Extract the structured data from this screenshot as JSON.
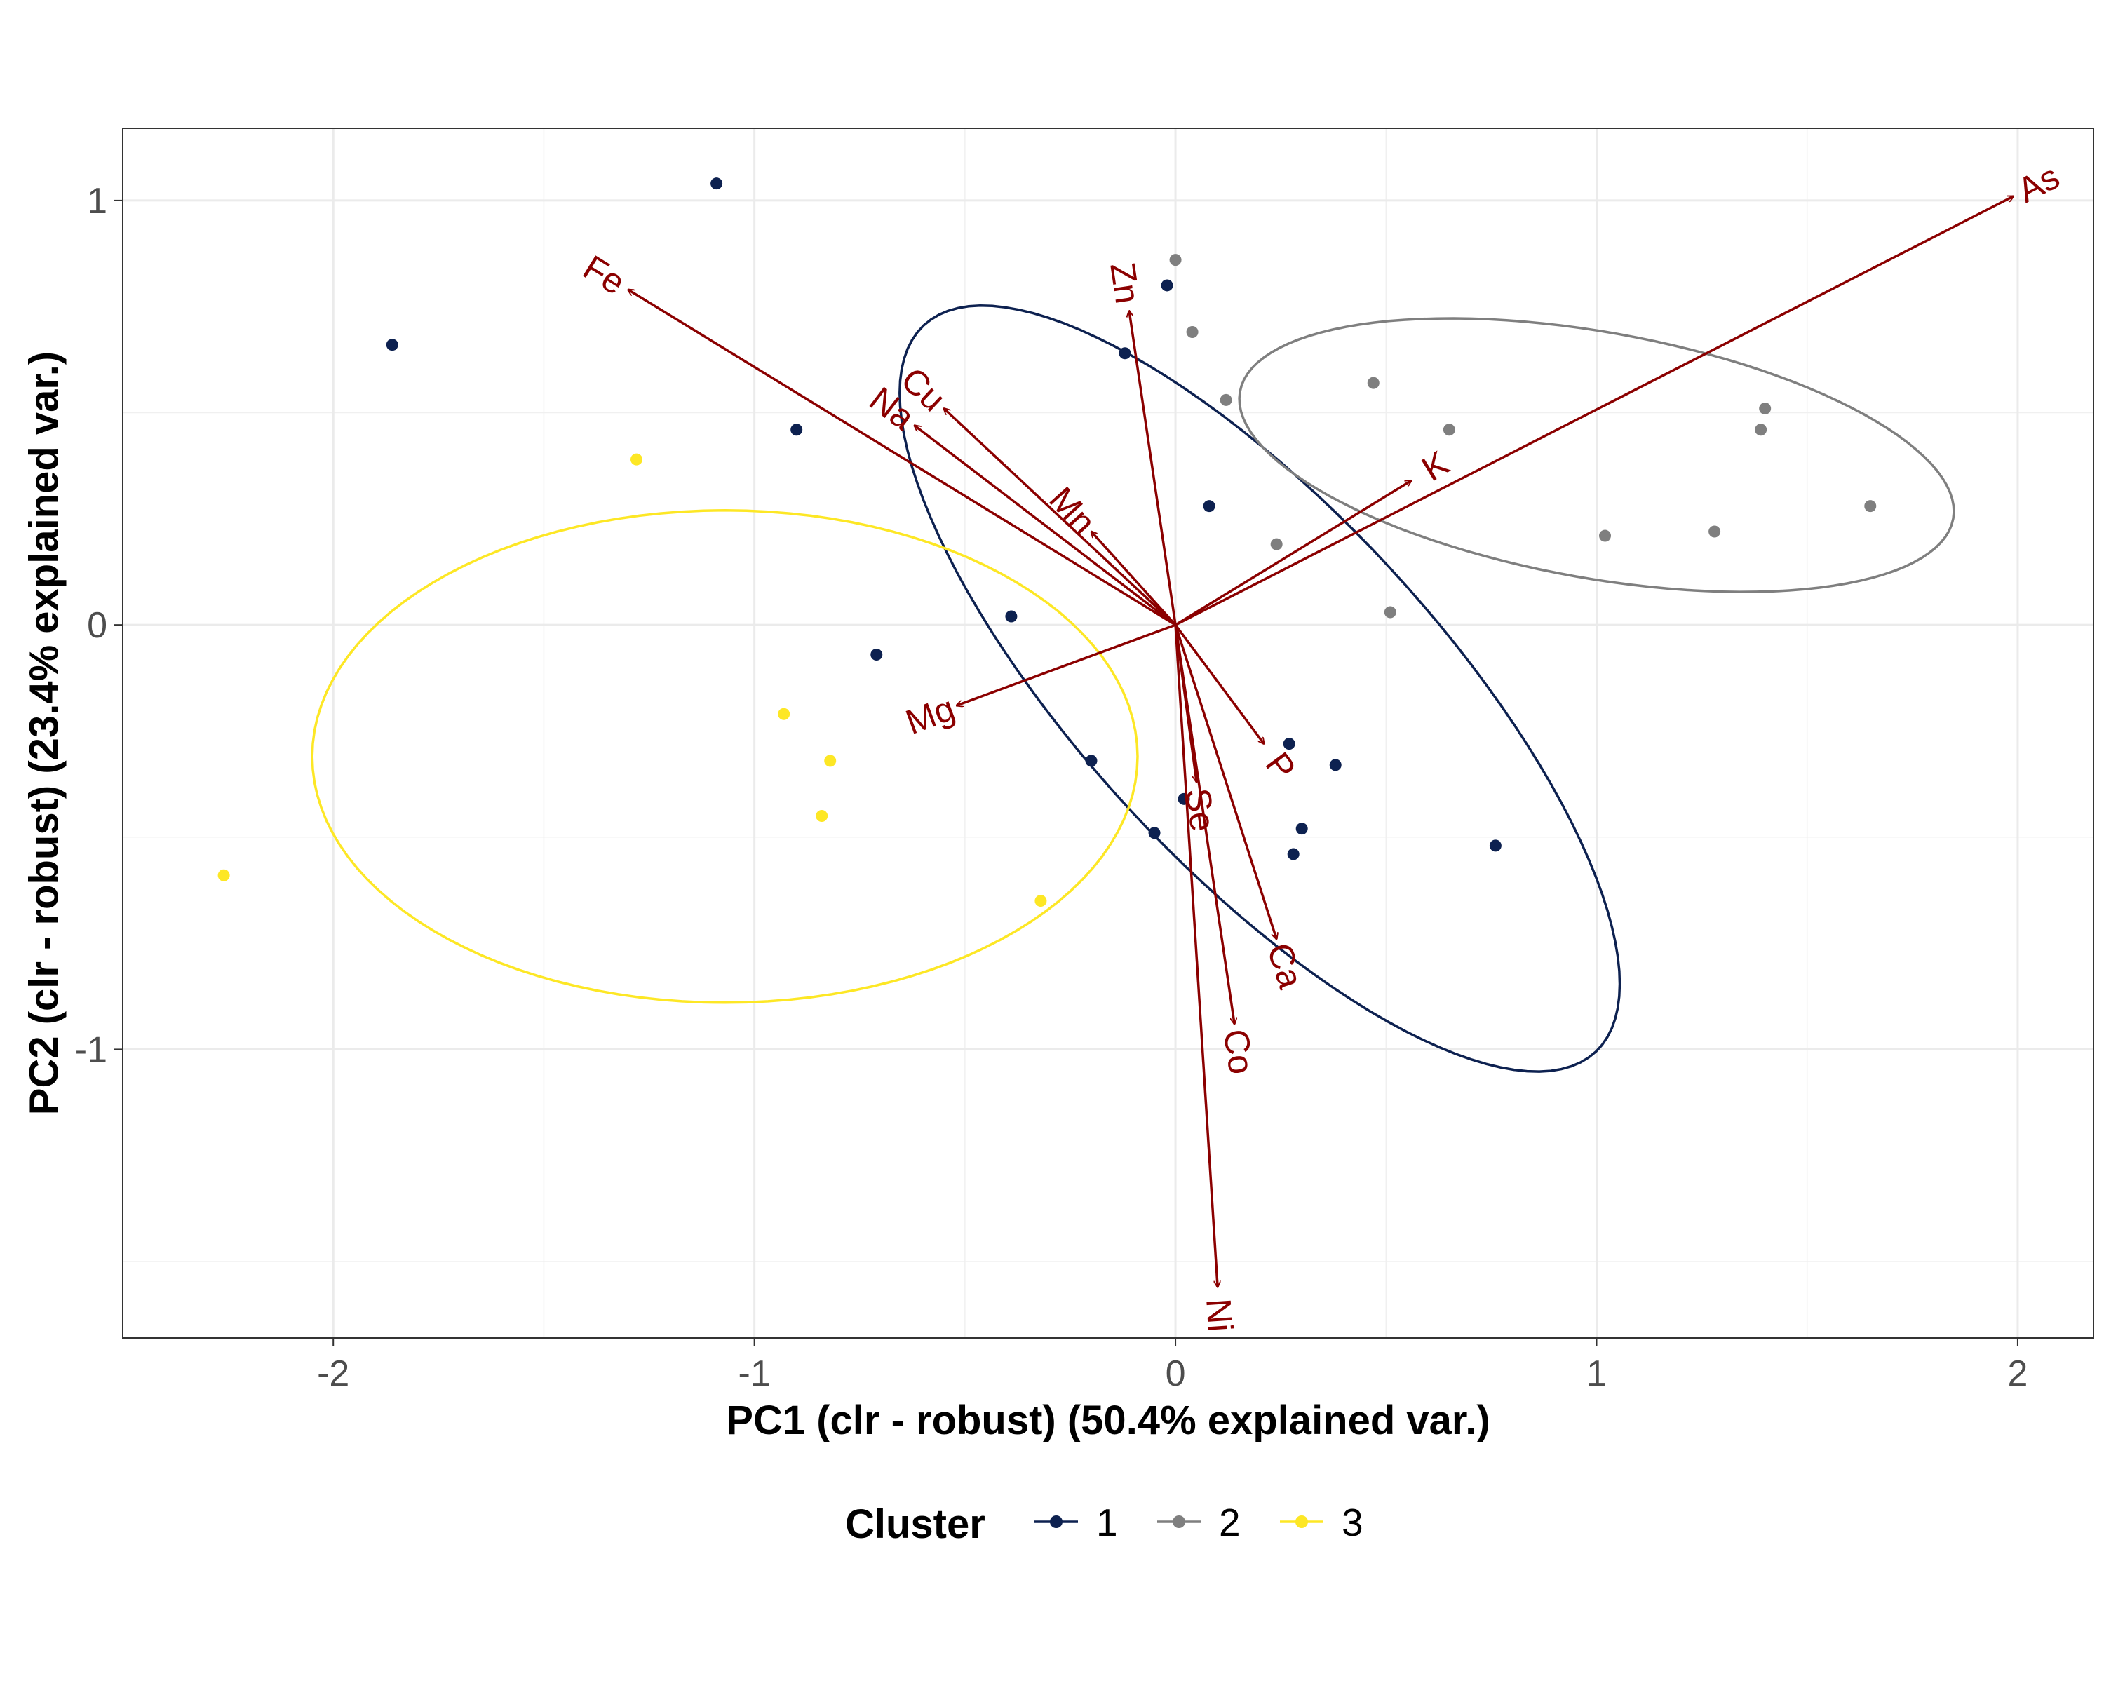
{
  "chart_data": {
    "type": "scatter",
    "subtype": "pca-biplot",
    "xlabel": "PC1 (clr - robust) (50.4% explained var.)",
    "ylabel": "PC2 (clr - robust) (23.4% explained var.)",
    "xlim": [
      -2.5,
      2.18
    ],
    "ylim": [
      -1.68,
      1.17
    ],
    "x_ticks": [
      -2,
      -1,
      0,
      1,
      2
    ],
    "x_tick_labels": [
      "-2",
      "-1",
      "0",
      "1",
      "2"
    ],
    "y_ticks": [
      -1,
      0,
      1
    ],
    "y_tick_labels": [
      "-1",
      "0",
      "1"
    ],
    "grid": true,
    "legend": {
      "title": "Cluster",
      "position": "bottom",
      "entries": [
        {
          "label": "1",
          "color": "#0d2150"
        },
        {
          "label": "2",
          "color": "#7f7f7f"
        },
        {
          "label": "3",
          "color": "#fde725"
        }
      ]
    },
    "series": [
      {
        "name": "1",
        "color": "#0d2150",
        "points": [
          [
            -1.09,
            1.04
          ],
          [
            -1.86,
            0.66
          ],
          [
            -0.9,
            0.46
          ],
          [
            -0.02,
            0.8
          ],
          [
            -0.12,
            0.64
          ],
          [
            0.08,
            0.28
          ],
          [
            -0.71,
            -0.07
          ],
          [
            -0.39,
            0.02
          ],
          [
            -0.2,
            -0.32
          ],
          [
            0.02,
            -0.41
          ],
          [
            -0.05,
            -0.49
          ],
          [
            0.27,
            -0.28
          ],
          [
            0.38,
            -0.33
          ],
          [
            0.3,
            -0.48
          ],
          [
            0.28,
            -0.54
          ],
          [
            0.76,
            -0.52
          ]
        ],
        "ellipse": {
          "center": [
            0.2,
            -0.15
          ],
          "semi_major": 1.17,
          "semi_minor": 0.42,
          "angle_deg": -47
        }
      },
      {
        "name": "2",
        "color": "#7f7f7f",
        "points": [
          [
            0.0,
            0.86
          ],
          [
            0.04,
            0.69
          ],
          [
            0.12,
            0.53
          ],
          [
            0.47,
            0.57
          ],
          [
            0.65,
            0.46
          ],
          [
            0.24,
            0.19
          ],
          [
            0.51,
            0.03
          ],
          [
            1.02,
            0.21
          ],
          [
            1.28,
            0.22
          ],
          [
            1.39,
            0.46
          ],
          [
            1.4,
            0.51
          ],
          [
            1.65,
            0.28
          ]
        ],
        "ellipse": {
          "center": [
            1.0,
            0.4
          ],
          "semi_major": 0.86,
          "semi_minor": 0.29,
          "angle_deg": -10
        }
      },
      {
        "name": "3",
        "color": "#fde725",
        "points": [
          [
            -1.28,
            0.39
          ],
          [
            -0.93,
            -0.21
          ],
          [
            -0.82,
            -0.32
          ],
          [
            -0.84,
            -0.45
          ],
          [
            -2.26,
            -0.59
          ],
          [
            -0.32,
            -0.65
          ]
        ],
        "ellipse": {
          "center": [
            -1.07,
            -0.31
          ],
          "semi_major": 0.98,
          "semi_minor": 0.58,
          "angle_deg": 0
        }
      }
    ],
    "loadings": [
      {
        "label": "As",
        "x": 1.99,
        "y": 1.01
      },
      {
        "label": "Fe",
        "x": -1.3,
        "y": 0.79
      },
      {
        "label": "Zn",
        "x": -0.11,
        "y": 0.74
      },
      {
        "label": "Cu",
        "x": -0.55,
        "y": 0.51
      },
      {
        "label": "Na",
        "x": -0.62,
        "y": 0.47
      },
      {
        "label": "Mn",
        "x": -0.2,
        "y": 0.22
      },
      {
        "label": "K",
        "x": 0.56,
        "y": 0.34
      },
      {
        "label": "Mg",
        "x": -0.52,
        "y": -0.19
      },
      {
        "label": "P",
        "x": 0.21,
        "y": -0.28
      },
      {
        "label": "Se",
        "x": 0.05,
        "y": -0.37
      },
      {
        "label": "Ca",
        "x": 0.24,
        "y": -0.74
      },
      {
        "label": "Co",
        "x": 0.14,
        "y": -0.94
      },
      {
        "label": "Ni",
        "x": 0.1,
        "y": -1.56
      }
    ],
    "loading_color": "#8b0000"
  }
}
